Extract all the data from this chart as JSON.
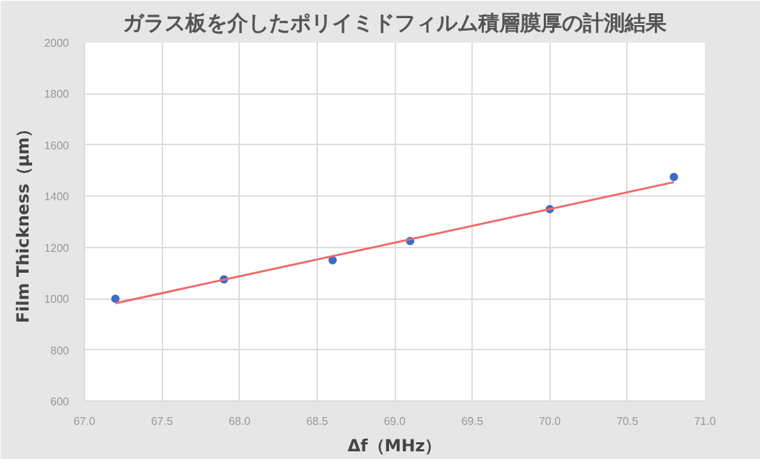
{
  "chart_data": {
    "type": "scatter",
    "title": "ガラス板を介したポリイミドフィルム積層膜厚の計測結果",
    "xlabel": "Δf（MHz）",
    "ylabel": "Film Thickness（μm）",
    "series": [
      {
        "color": "#3a6cc8",
        "marker": "circle",
        "x": [
          67.2,
          67.9,
          68.6,
          69.1,
          70.0,
          70.8
        ],
        "values": [
          1000,
          1075,
          1150,
          1225,
          1350,
          1475
        ]
      },
      {
        "type": "line",
        "marker": "none",
        "color": "#f06a6a",
        "x": [
          67.2,
          70.8
        ],
        "values": [
          982,
          1455
        ]
      }
    ],
    "xlim": [
      67.0,
      71.0
    ],
    "xticks": [
      {
        "value": 67.0,
        "label": "67.0"
      },
      {
        "value": 67.5,
        "label": "67.5"
      },
      {
        "value": 68.0,
        "label": "68.0"
      },
      {
        "value": 68.5,
        "label": "68.5"
      },
      {
        "value": 69.0,
        "label": "69.0"
      },
      {
        "value": 69.5,
        "label": "69.5"
      },
      {
        "value": 70.0,
        "label": "70.0"
      },
      {
        "value": 70.5,
        "label": "70.5"
      },
      {
        "value": 71.0,
        "label": "71.0"
      }
    ],
    "ylim": [
      600,
      2000
    ],
    "yticks": [
      600,
      800,
      1000,
      1200,
      1400,
      1600,
      1800,
      2000
    ],
    "grid": true
  }
}
